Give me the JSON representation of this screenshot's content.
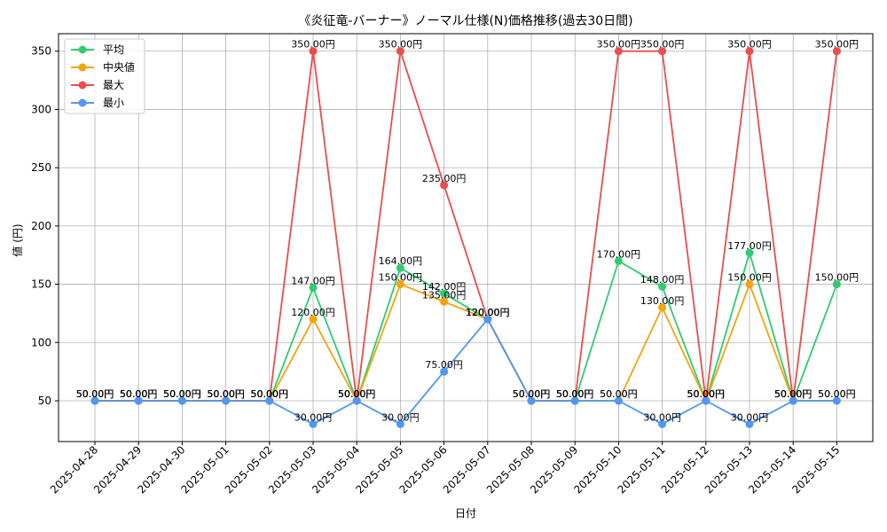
{
  "chart_data": {
    "type": "line",
    "title": "《炎征竜-バーナー》ノーマル仕様(N)価格推移(過去30日間)",
    "xlabel": "日付",
    "ylabel": "値 (円)",
    "ylim": [
      15,
      365
    ],
    "yticks": [
      50,
      100,
      150,
      200,
      250,
      300,
      350
    ],
    "categories": [
      "2025-04-28",
      "2025-04-29",
      "2025-04-30",
      "2025-05-01",
      "2025-05-02",
      "2025-05-03",
      "2025-05-04",
      "2025-05-05",
      "2025-05-06",
      "2025-05-07",
      "2025-05-08",
      "2025-05-09",
      "2025-05-10",
      "2025-05-11",
      "2025-05-12",
      "2025-05-13",
      "2025-05-14",
      "2025-05-15"
    ],
    "legend_position": "top-left",
    "grid": true,
    "label_suffix": "円",
    "series": [
      {
        "name": "平均",
        "color": "#2ecc71",
        "values": [
          50,
          50,
          50,
          50,
          50,
          147,
          50,
          164,
          142,
          120,
          50,
          50,
          170,
          148,
          50,
          177,
          50,
          150
        ]
      },
      {
        "name": "中央値",
        "color": "#f5a30a",
        "values": [
          50,
          50,
          50,
          50,
          50,
          120,
          50,
          150,
          135,
          120,
          50,
          50,
          50,
          130,
          50,
          150,
          50,
          50
        ]
      },
      {
        "name": "最大",
        "color": "#ee4b4b",
        "values": [
          50,
          50,
          50,
          50,
          50,
          350,
          50,
          350,
          235,
          120,
          50,
          50,
          350,
          350,
          50,
          350,
          50,
          350
        ]
      },
      {
        "name": "最小",
        "color": "#4f97f2",
        "values": [
          50,
          50,
          50,
          50,
          50,
          30,
          50,
          30,
          75,
          120,
          50,
          50,
          50,
          30,
          50,
          30,
          50,
          50
        ]
      }
    ]
  }
}
